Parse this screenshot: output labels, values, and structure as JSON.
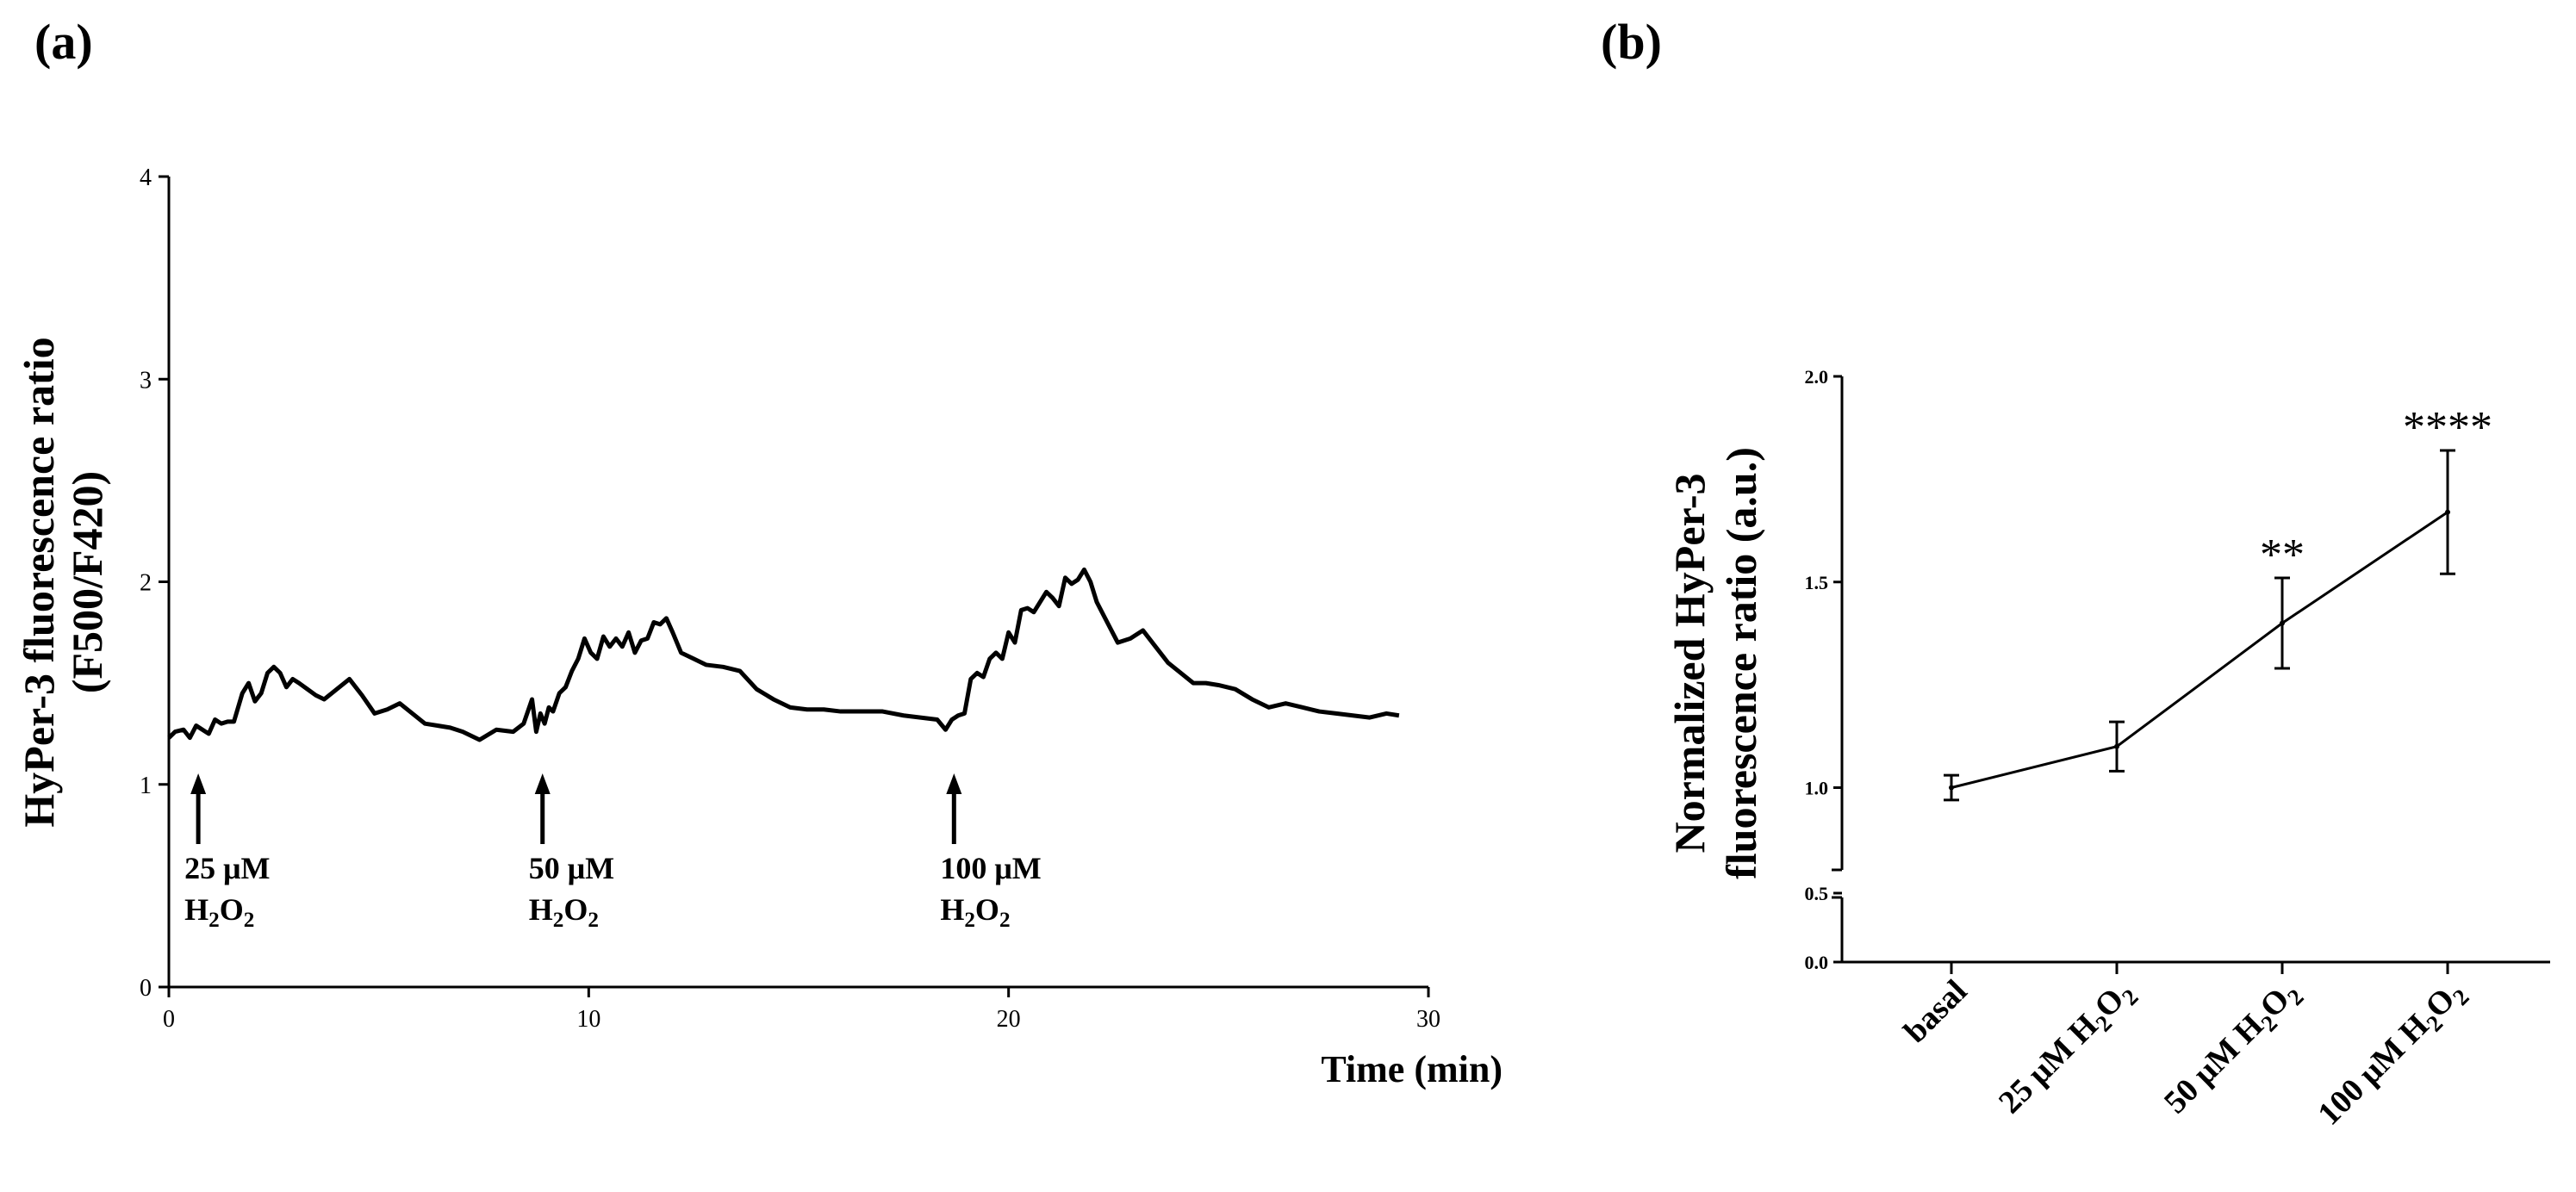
{
  "panels": {
    "a": "(a)",
    "b": "(b)"
  },
  "chart_data": [
    {
      "id": "a",
      "type": "line",
      "xlabel": "Time (min)",
      "ylabel_lines": [
        "HyPer-3 fluorescence ratio",
        "(F500/F420)"
      ],
      "xlim": [
        0,
        30
      ],
      "ylim": [
        0,
        4
      ],
      "xticks": [
        0,
        10,
        20,
        30
      ],
      "yticks": [
        0,
        1,
        2,
        3,
        4
      ],
      "annotations": [
        {
          "x": 0.7,
          "conc": "25 μM",
          "species": "H",
          "sub1": "2",
          "mid": "O",
          "sub2": "2"
        },
        {
          "x": 8.9,
          "conc": "50 μM",
          "species": "H",
          "sub1": "2",
          "mid": "O",
          "sub2": "2"
        },
        {
          "x": 18.7,
          "conc": "100 μM",
          "species": "H",
          "sub1": "2",
          "mid": "O",
          "sub2": "2"
        }
      ],
      "x": [
        0.0,
        0.15,
        0.35,
        0.5,
        0.65,
        0.8,
        0.95,
        1.1,
        1.25,
        1.4,
        1.55,
        1.75,
        1.9,
        2.05,
        2.2,
        2.35,
        2.5,
        2.65,
        2.8,
        2.95,
        3.1,
        3.3,
        3.5,
        3.7,
        4.0,
        4.3,
        4.6,
        4.9,
        5.2,
        5.5,
        5.8,
        6.1,
        6.4,
        6.7,
        7.0,
        7.4,
        7.8,
        8.2,
        8.45,
        8.65,
        8.75,
        8.85,
        8.95,
        9.05,
        9.15,
        9.3,
        9.45,
        9.6,
        9.75,
        9.9,
        10.05,
        10.2,
        10.35,
        10.5,
        10.65,
        10.8,
        10.95,
        11.1,
        11.25,
        11.4,
        11.55,
        11.7,
        11.85,
        12.0,
        12.2,
        12.5,
        12.8,
        13.2,
        13.6,
        14.0,
        14.4,
        14.8,
        15.2,
        15.6,
        16.0,
        16.5,
        17.0,
        17.5,
        17.9,
        18.3,
        18.5,
        18.65,
        18.8,
        18.95,
        19.1,
        19.25,
        19.4,
        19.55,
        19.7,
        19.85,
        20.0,
        20.15,
        20.3,
        20.45,
        20.6,
        20.75,
        20.9,
        21.05,
        21.2,
        21.35,
        21.5,
        21.65,
        21.8,
        21.95,
        22.1,
        22.3,
        22.6,
        22.9,
        23.2,
        23.5,
        23.8,
        24.1,
        24.4,
        24.7,
        25.0,
        25.4,
        25.8,
        26.2,
        26.6,
        27.0,
        27.4,
        27.8,
        28.2,
        28.6,
        29.0,
        29.3
      ],
      "y": [
        1.23,
        1.26,
        1.27,
        1.23,
        1.29,
        1.27,
        1.25,
        1.32,
        1.3,
        1.31,
        1.31,
        1.45,
        1.5,
        1.41,
        1.45,
        1.55,
        1.58,
        1.55,
        1.48,
        1.52,
        1.5,
        1.47,
        1.44,
        1.42,
        1.47,
        1.52,
        1.44,
        1.35,
        1.37,
        1.4,
        1.35,
        1.3,
        1.29,
        1.28,
        1.26,
        1.22,
        1.27,
        1.26,
        1.3,
        1.42,
        1.26,
        1.35,
        1.3,
        1.38,
        1.36,
        1.45,
        1.48,
        1.56,
        1.62,
        1.72,
        1.65,
        1.62,
        1.73,
        1.68,
        1.72,
        1.68,
        1.75,
        1.65,
        1.71,
        1.72,
        1.8,
        1.79,
        1.82,
        1.75,
        1.65,
        1.62,
        1.59,
        1.58,
        1.56,
        1.47,
        1.42,
        1.38,
        1.37,
        1.37,
        1.36,
        1.36,
        1.36,
        1.34,
        1.33,
        1.32,
        1.27,
        1.32,
        1.34,
        1.35,
        1.52,
        1.55,
        1.53,
        1.62,
        1.65,
        1.62,
        1.75,
        1.7,
        1.86,
        1.87,
        1.85,
        1.9,
        1.95,
        1.92,
        1.88,
        2.02,
        1.99,
        2.01,
        2.06,
        2.0,
        1.9,
        1.82,
        1.7,
        1.72,
        1.76,
        1.68,
        1.6,
        1.55,
        1.5,
        1.5,
        1.49,
        1.47,
        1.42,
        1.38,
        1.4,
        1.38,
        1.36,
        1.35,
        1.34,
        1.33,
        1.35,
        1.34
      ]
    },
    {
      "id": "b",
      "type": "line",
      "ylabel_lines": [
        "Normalized HyPer-3",
        "fluorescence ratio (a.u.)"
      ],
      "categories": [
        "basal",
        "25 μM H2O2",
        "50 μM H2O2",
        "100 μM H2O2"
      ],
      "category_labels": [
        {
          "text": "basal"
        },
        {
          "text": "25 μM H",
          "sub1": "2",
          "mid": "O",
          "sub2": "2"
        },
        {
          "text": "50 μM H",
          "sub1": "2",
          "mid": "O",
          "sub2": "2"
        },
        {
          "text": "100 μM H",
          "sub1": "2",
          "mid": "O",
          "sub2": "2"
        }
      ],
      "values": [
        1.0,
        1.1,
        1.4,
        1.67
      ],
      "error": [
        0.03,
        0.06,
        0.11,
        0.15
      ],
      "significance": [
        "",
        "",
        "**",
        "****"
      ],
      "yaxis_broken": true,
      "ylim_lower": [
        0.0,
        0.5
      ],
      "ylim_upper": [
        0.8,
        2.0
      ],
      "yticks_lower": [
        "0.0",
        "0.5"
      ],
      "yticks_upper": [
        "1.0",
        "1.5",
        "2.0"
      ]
    }
  ]
}
